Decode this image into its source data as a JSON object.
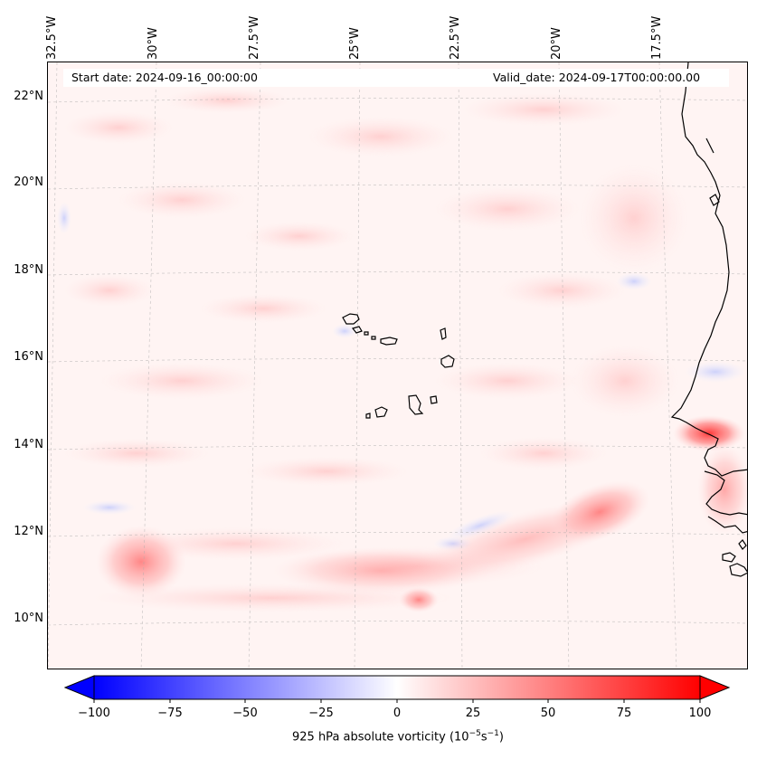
{
  "header": {
    "start_date": "Start date: 2024-09-16_00:00:00",
    "valid_date": "Valid_date: 2024-09-17T00:00:00.00"
  },
  "axes": {
    "lon_labels": [
      "32.5°W",
      "30°W",
      "27.5°W",
      "25°W",
      "22.5°W",
      "20°W",
      "17.5°W"
    ],
    "lat_labels": [
      "22°N",
      "20°N",
      "18°N",
      "16°N",
      "14°N",
      "12°N",
      "10°N"
    ]
  },
  "colorbar": {
    "ticks": [
      "−100",
      "−75",
      "−50",
      "−25",
      "0",
      "25",
      "50",
      "75",
      "100"
    ],
    "label_main": "925 hPa absolute vorticity (10",
    "label_exp1": "−5",
    "label_mid": "s",
    "label_exp2": "−1",
    "label_end": ")",
    "min_color": "#0000ff",
    "mid_color": "#ffffff",
    "max_color": "#ff0000"
  },
  "map": {
    "field": "925 hPa absolute vorticity",
    "background_color": "#fff6f5",
    "coastline_color": "#000000"
  }
}
